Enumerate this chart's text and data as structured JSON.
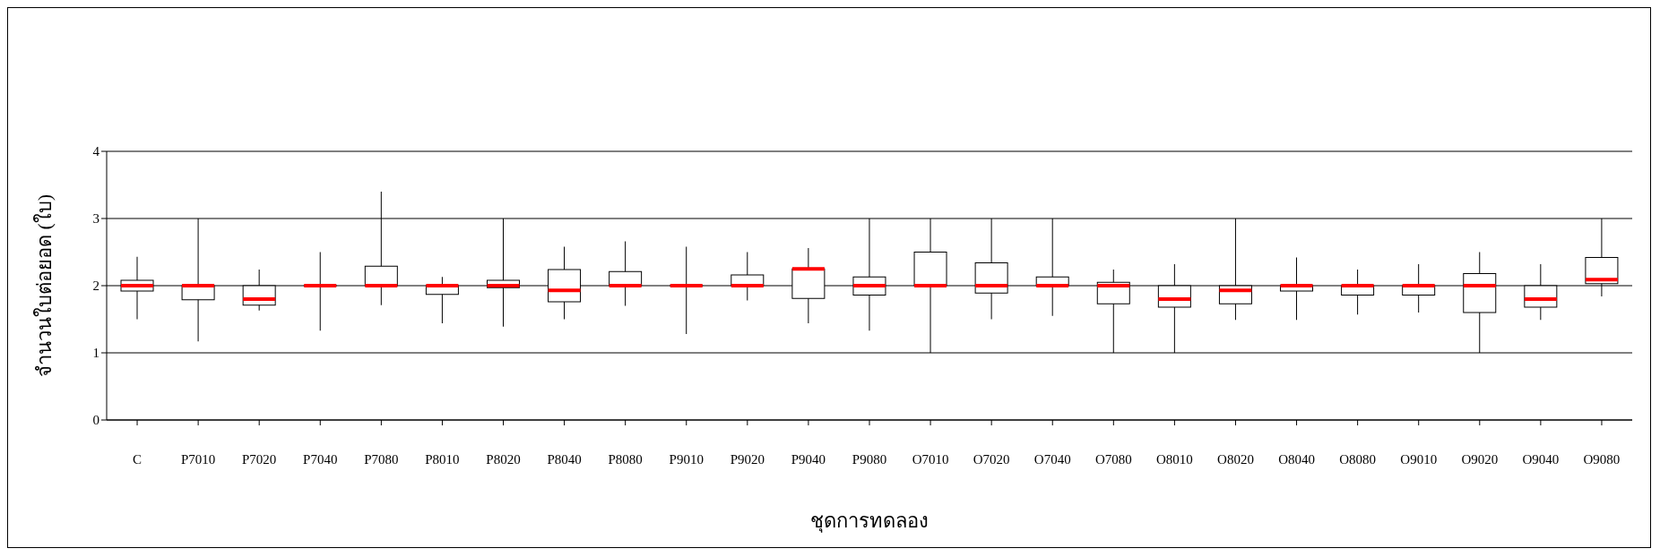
{
  "chart_data": {
    "type": "box",
    "xlabel": "ชุดการทดลอง",
    "ylabel": "จำนวนใบต่อยอด (ใบ)",
    "categories": [
      "C",
      "P7010",
      "P7020",
      "P7040",
      "P7080",
      "P8010",
      "P8020",
      "P8040",
      "P8080",
      "P9010",
      "P9020",
      "P9040",
      "P9080",
      "O7010",
      "O7020",
      "O7040",
      "O7080",
      "O8010",
      "O8020",
      "O8040",
      "O8080",
      "O9010",
      "O9020",
      "O9040",
      "O9080"
    ],
    "boxes": [
      {
        "low": 1.5,
        "q1": 1.92,
        "median": 2.0,
        "q3": 2.08,
        "high": 2.43
      },
      {
        "low": 1.17,
        "q1": 1.79,
        "median": 2.0,
        "q3": 2.0,
        "high": 3.0
      },
      {
        "low": 1.63,
        "q1": 1.71,
        "median": 1.8,
        "q3": 2.0,
        "high": 2.24
      },
      {
        "low": 1.33,
        "q1": 2.0,
        "median": 2.0,
        "q3": 2.0,
        "high": 2.5
      },
      {
        "low": 1.71,
        "q1": 2.0,
        "median": 2.0,
        "q3": 2.29,
        "high": 3.4
      },
      {
        "low": 1.44,
        "q1": 1.87,
        "median": 2.0,
        "q3": 2.0,
        "high": 2.13
      },
      {
        "low": 1.39,
        "q1": 1.97,
        "median": 2.0,
        "q3": 2.08,
        "high": 3.0
      },
      {
        "low": 1.5,
        "q1": 1.76,
        "median": 1.93,
        "q3": 2.24,
        "high": 2.58
      },
      {
        "low": 1.7,
        "q1": 2.0,
        "median": 2.0,
        "q3": 2.21,
        "high": 2.66
      },
      {
        "low": 1.28,
        "q1": 2.0,
        "median": 2.0,
        "q3": 2.0,
        "high": 2.58
      },
      {
        "low": 1.78,
        "q1": 2.0,
        "median": 2.0,
        "q3": 2.16,
        "high": 2.5
      },
      {
        "low": 1.44,
        "q1": 1.81,
        "median": 2.25,
        "q3": 2.25,
        "high": 2.56
      },
      {
        "low": 1.33,
        "q1": 1.86,
        "median": 2.0,
        "q3": 2.13,
        "high": 3.0
      },
      {
        "low": 1.0,
        "q1": 2.0,
        "median": 2.0,
        "q3": 2.5,
        "high": 3.0
      },
      {
        "low": 1.5,
        "q1": 1.89,
        "median": 2.0,
        "q3": 2.34,
        "high": 3.0
      },
      {
        "low": 1.55,
        "q1": 2.0,
        "median": 2.0,
        "q3": 2.13,
        "high": 3.0
      },
      {
        "low": 1.0,
        "q1": 1.73,
        "median": 2.0,
        "q3": 2.05,
        "high": 2.24
      },
      {
        "low": 1.0,
        "q1": 1.68,
        "median": 1.8,
        "q3": 2.0,
        "high": 2.32
      },
      {
        "low": 1.49,
        "q1": 1.73,
        "median": 1.93,
        "q3": 2.0,
        "high": 3.0
      },
      {
        "low": 1.49,
        "q1": 1.92,
        "median": 2.0,
        "q3": 2.0,
        "high": 2.42
      },
      {
        "low": 1.57,
        "q1": 1.86,
        "median": 2.0,
        "q3": 2.0,
        "high": 2.24
      },
      {
        "low": 1.6,
        "q1": 1.86,
        "median": 2.0,
        "q3": 2.0,
        "high": 2.32
      },
      {
        "low": 1.0,
        "q1": 1.6,
        "median": 2.0,
        "q3": 2.18,
        "high": 2.5
      },
      {
        "low": 1.49,
        "q1": 1.68,
        "median": 1.8,
        "q3": 2.0,
        "high": 2.32
      },
      {
        "low": 1.84,
        "q1": 2.03,
        "median": 2.09,
        "q3": 2.42,
        "high": 3.0
      }
    ],
    "ylim": [
      0,
      4
    ],
    "yticks": [
      0,
      1,
      2,
      3,
      4
    ],
    "grid": "y"
  }
}
